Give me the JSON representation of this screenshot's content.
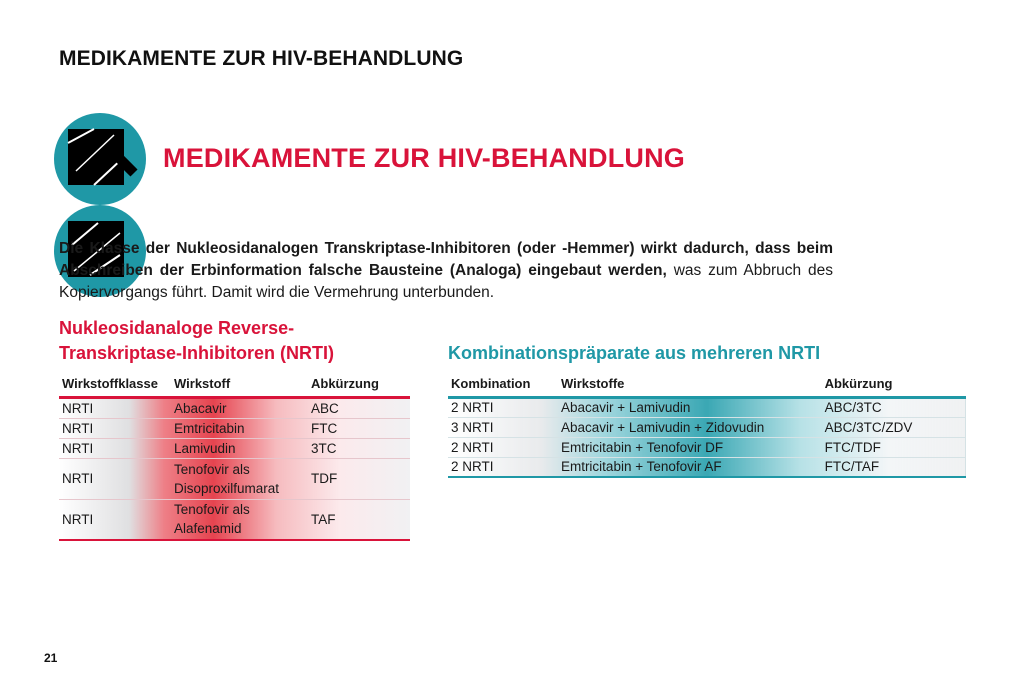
{
  "header": {
    "title": "MEDIKAMENTE ZUR HIV-BEHANDLUNG"
  },
  "section": {
    "title": "MEDIKAMENTE ZUR HIV-BEHANDLUNG"
  },
  "intro": {
    "bold_text": "Die Klasse der Nukleosidanalogen Transkriptase-Inhibitoren (oder -Hemmer) wirkt dadurch, dass beim Abschreiben der Erbinformation falsche Bausteine (Analoga) eingebaut werden,",
    "normal_text": " was zum Abbruch des Kopiervorgangs führt. Damit wird die Vermehrung unterbunden."
  },
  "nrti_table": {
    "heading": "Nukleosidanaloge Reverse-Transkriptase-Inhibitoren (NRTI)",
    "columns": [
      "Wirkstoffklasse",
      "Wirkstoff",
      "Abkürzung"
    ],
    "rows": [
      [
        "NRTI",
        "Abacavir",
        "ABC"
      ],
      [
        "NRTI",
        "Emtricitabin",
        "FTC"
      ],
      [
        "NRTI",
        "Lamivudin",
        "3TC"
      ],
      [
        "NRTI",
        "Tenofovir als Disoproxilfumarat",
        "TDF"
      ],
      [
        "NRTI",
        "Tenofovir als Alafenamid",
        "TAF"
      ]
    ]
  },
  "combo_table": {
    "heading": "Kombinationspräparate aus mehreren NRTI",
    "columns": [
      "Kombination",
      "Wirkstoffe",
      "Abkürzung"
    ],
    "rows": [
      [
        "2 NRTI",
        "Abacavir + Lamivudin",
        "ABC/3TC"
      ],
      [
        "3 NRTI",
        "Abacavir + Lamivudin + Zidovudin",
        "ABC/3TC/ZDV"
      ],
      [
        "2 NRTI",
        "Emtricitabin + Tenofovir DF",
        "FTC/TDF"
      ],
      [
        "2 NRTI",
        "Emtricitabin + Tenofovir AF",
        "FTC/TAF"
      ]
    ]
  },
  "page": {
    "number": "21"
  },
  "colors": {
    "accent_red": "#d9133a",
    "accent_teal": "#1f98a6"
  },
  "icons": [
    "logo-mark-icon"
  ]
}
